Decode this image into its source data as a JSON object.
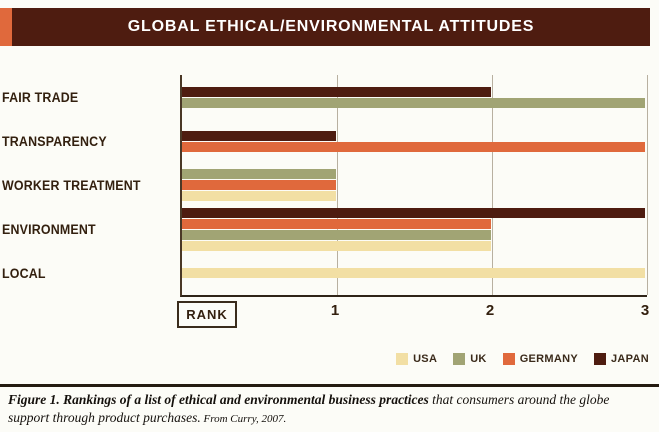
{
  "header": {
    "title": "GLOBAL ETHICAL/ENVIRONMENTAL ATTITUDES"
  },
  "colors": {
    "USA": "#f2dfa4",
    "UK": "#a1a474",
    "GERMANY": "#e0693c",
    "JAPAN": "#4e1c10",
    "header_bg": "#4e1c10",
    "accent": "#e0693c"
  },
  "axis": {
    "rank_label": "RANK"
  },
  "chart_data": {
    "type": "bar",
    "orientation": "horizontal",
    "title": "GLOBAL ETHICAL/ENVIRONMENTAL ATTITUDES",
    "xlabel": "RANK",
    "xlim": [
      0,
      3
    ],
    "xticks": [
      1,
      2,
      3
    ],
    "grid": true,
    "legend_position": "bottom-right",
    "categories": [
      "FAIR TRADE",
      "TRANSPARENCY",
      "WORKER TREATMENT",
      "ENVIRONMENT",
      "LOCAL"
    ],
    "groups": [
      {
        "label": "FAIR TRADE",
        "bars": [
          {
            "country": "JAPAN",
            "rank": 2
          },
          {
            "country": "UK",
            "rank": 3
          }
        ]
      },
      {
        "label": "TRANSPARENCY",
        "bars": [
          {
            "country": "JAPAN",
            "rank": 1
          },
          {
            "country": "GERMANY",
            "rank": 3
          }
        ]
      },
      {
        "label": "WORKER TREATMENT",
        "bars": [
          {
            "country": "UK",
            "rank": 1
          },
          {
            "country": "GERMANY",
            "rank": 1
          },
          {
            "country": "USA",
            "rank": 1
          }
        ]
      },
      {
        "label": "ENVIRONMENT",
        "bars": [
          {
            "country": "JAPAN",
            "rank": 3
          },
          {
            "country": "GERMANY",
            "rank": 2
          },
          {
            "country": "UK",
            "rank": 2
          },
          {
            "country": "USA",
            "rank": 2
          }
        ]
      },
      {
        "label": "LOCAL",
        "bars": [
          {
            "country": "USA",
            "rank": 3
          }
        ]
      }
    ],
    "legend": [
      {
        "label": "USA",
        "color": "#f2dfa4"
      },
      {
        "label": "UK",
        "color": "#a1a474"
      },
      {
        "label": "GERMANY",
        "color": "#e0693c"
      },
      {
        "label": "JAPAN",
        "color": "#4e1c10"
      }
    ]
  },
  "caption": {
    "lead": "Figure 1. Rankings of a list of ethical and environmental business practices",
    "rest": " that consumers around the globe support through product purchases.",
    "source": " From Curry, 2007."
  }
}
